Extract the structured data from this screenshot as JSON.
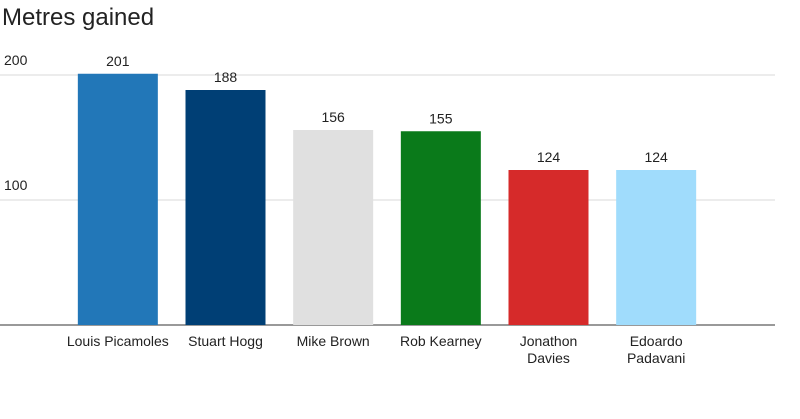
{
  "chart_data": {
    "type": "bar",
    "title": "Metres gained",
    "categories": [
      "Louis Picamoles",
      "Stuart Hogg",
      "Mike Brown",
      "Rob Kearney",
      "Jonathon Davies",
      "Edoardo Padavani"
    ],
    "values": [
      201,
      188,
      156,
      155,
      124,
      124
    ],
    "colors": [
      "#2277b8",
      "#003f75",
      "#e0e0e0",
      "#0a7a1a",
      "#d62a2a",
      "#a0dcfc"
    ],
    "ylim": [
      0,
      200
    ],
    "yticks": [
      100,
      200
    ],
    "grid": true
  }
}
